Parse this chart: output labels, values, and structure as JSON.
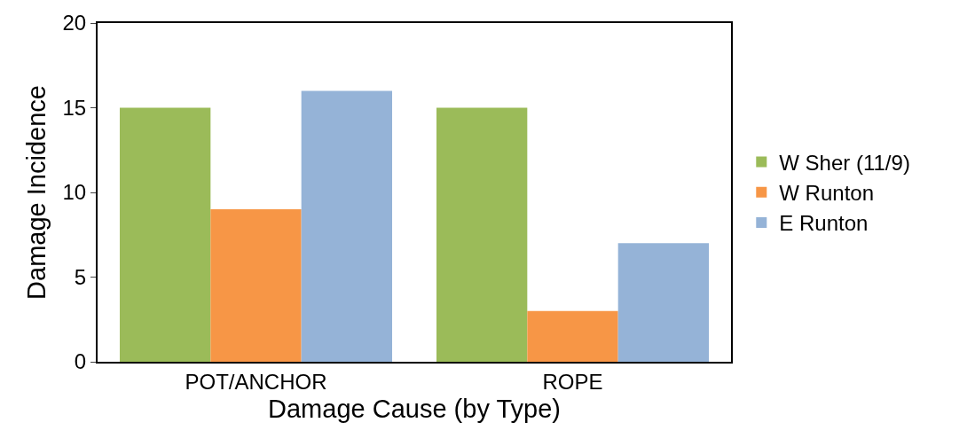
{
  "chart_data": {
    "type": "bar",
    "xlabel": "Damage Cause (by Type)",
    "ylabel": "Damage Incidence",
    "categories": [
      "POT/ANCHOR",
      "ROPE"
    ],
    "series": [
      {
        "name": "W Sher (11/9)",
        "color": "#9bbb59",
        "values": [
          15,
          15
        ]
      },
      {
        "name": "W Runton",
        "color": "#f79646",
        "values": [
          9,
          3
        ]
      },
      {
        "name": "E Runton",
        "color": "#95b3d7",
        "values": [
          16,
          7
        ]
      }
    ],
    "ylim": [
      0,
      20
    ],
    "yticks": [
      0,
      5,
      10,
      15,
      20
    ],
    "legend": "right"
  }
}
